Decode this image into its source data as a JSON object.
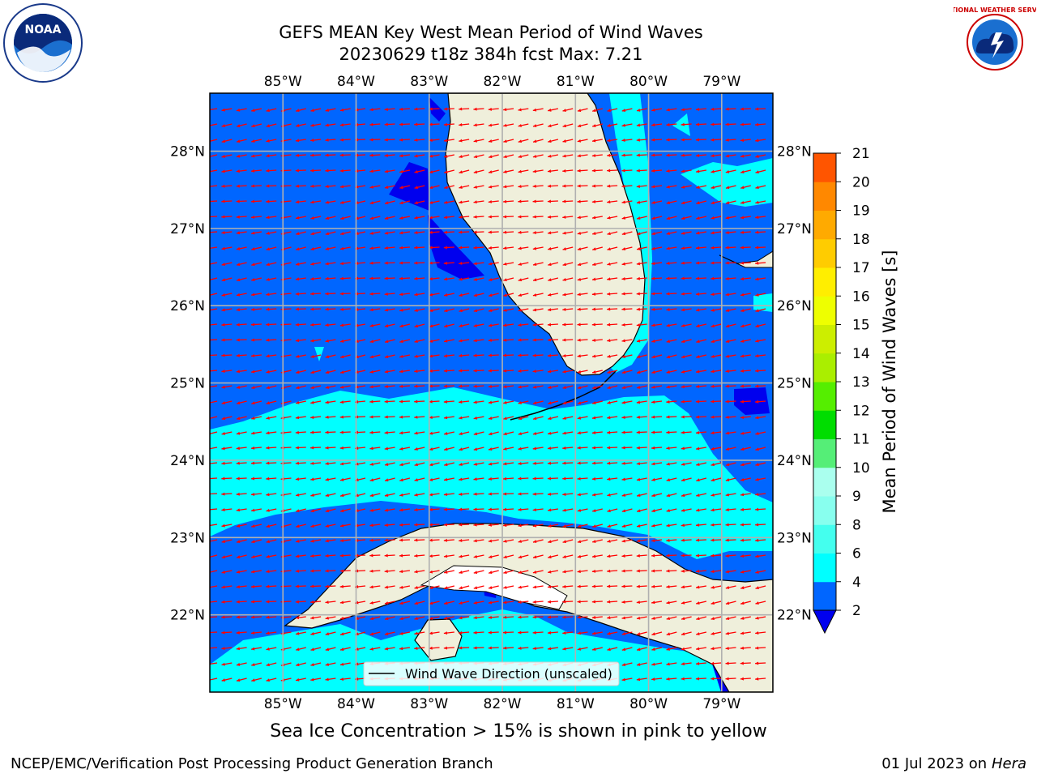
{
  "header": {
    "title_line1": "GEFS MEAN Key West Mean Period of Wind Waves",
    "title_line2": "20230629 t18z 384h fcst   Max: 7.21"
  },
  "map": {
    "lon_ticks": [
      "85°W",
      "84°W",
      "83°W",
      "82°W",
      "81°W",
      "80°W",
      "79°W"
    ],
    "lat_ticks": [
      "28°N",
      "27°N",
      "26°N",
      "25°N",
      "24°N",
      "23°N",
      "22°N"
    ],
    "lon_values": [
      -85,
      -84,
      -83,
      -82,
      -81,
      -80,
      -79
    ],
    "lat_values": [
      28,
      27,
      26,
      25,
      24,
      23,
      22
    ],
    "extent": {
      "lon_min": -86,
      "lon_max": -78.3,
      "lat_min": 21.0,
      "lat_max": 28.75
    },
    "legend_label": "Wind Wave Direction (unscaled)",
    "arrow_color": "#ff0000",
    "land_color": "#efefdb"
  },
  "colorbar": {
    "label": "Mean Period of Wind Waves [s]",
    "ticks": [
      "2",
      "4",
      "6",
      "8",
      "9",
      "10",
      "11",
      "12",
      "13",
      "14",
      "15",
      "16",
      "17",
      "18",
      "19",
      "20",
      "21"
    ],
    "levels": [
      2,
      4,
      6,
      8,
      9,
      10,
      11,
      12,
      13,
      14,
      15,
      16,
      17,
      18,
      19,
      20,
      21
    ],
    "colors": [
      "#0066ff",
      "#00ffff",
      "#44ffee",
      "#88ffee",
      "#aaffee",
      "#55ee77",
      "#00dd00",
      "#55ee00",
      "#aaee00",
      "#ccee00",
      "#eeff00",
      "#ffee00",
      "#ffcc00",
      "#ffaa00",
      "#ff8800",
      "#ff5500",
      "#ff2200",
      "#ff0000"
    ],
    "under_color": "#0000ee"
  },
  "chart_data": {
    "type": "heatmap",
    "title": "GEFS MEAN Key West Mean Period of Wind Waves",
    "subtitle": "20230629 t18z 384h fcst   Max: 7.21",
    "xlabel": "",
    "ylabel": "",
    "colorbar_label": "Mean Period of Wind Waves [s]",
    "value_range": [
      2,
      21
    ],
    "max_value": 7.21,
    "x_ticks": [
      "85°W",
      "84°W",
      "83°W",
      "82°W",
      "81°W",
      "80°W",
      "79°W"
    ],
    "y_ticks": [
      "28°N",
      "27°N",
      "26°N",
      "25°N",
      "24°N",
      "23°N",
      "22°N"
    ],
    "grid": true
  },
  "caption": "Sea Ice Concentration > 15% is shown in pink to yellow",
  "footer": {
    "left": "NCEP/EMC/Verification Post Processing Product Generation Branch",
    "date": "01 Jul 2023 on ",
    "host": "Hera"
  },
  "logos": {
    "noaa_text": "NOAA",
    "nws_text": "NATIONAL WEATHER SERVICE"
  }
}
